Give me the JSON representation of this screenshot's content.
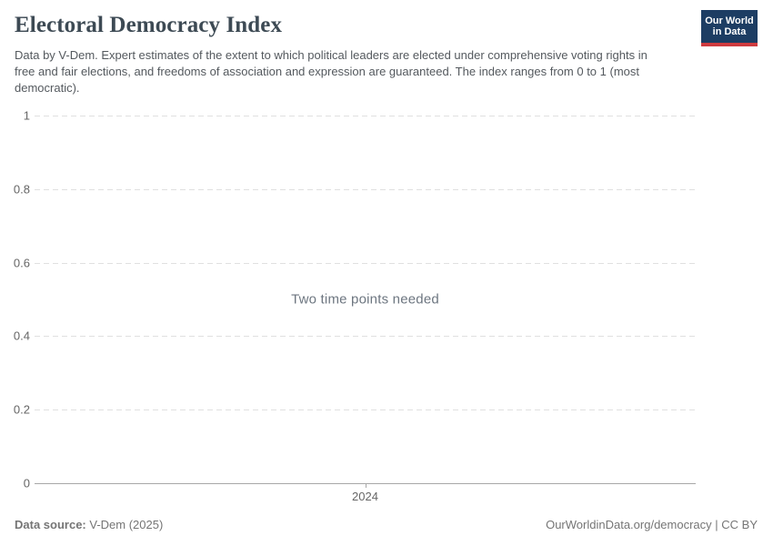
{
  "header": {
    "title": "Electoral Democracy Index",
    "subtitle": "Data by V-Dem. Expert estimates of the extent to which political leaders are elected under comprehensive voting rights in free and fair elections, and freedoms of association and expression are guaranteed. The index ranges from 0 to 1 (most democratic).",
    "logo": {
      "line1": "Our World",
      "line2": "in Data"
    }
  },
  "chart_data": {
    "type": "line",
    "title": "Electoral Democracy Index",
    "series": [],
    "message": "Two time points needed",
    "x_tick_labels": [
      "2024"
    ],
    "y_ticks": [
      0,
      0.2,
      0.4,
      0.6,
      0.8,
      1
    ],
    "y_tick_labels": [
      "0",
      "0.2",
      "0.4",
      "0.6",
      "0.8",
      "1"
    ],
    "ylim": [
      0,
      1
    ],
    "xlabel": "",
    "ylabel": "",
    "grid": true,
    "grid_style": "dashed",
    "legend": "none"
  },
  "footer": {
    "source_label": "Data source:",
    "source_value": "V-Dem (2025)",
    "credit_link": "OurWorldinData.org/democracy",
    "credit_suffix": "| CC BY"
  },
  "colors": {
    "logo_bg": "#1d3d63",
    "logo_stripe": "#cf3b3f",
    "title_text": "#3d4a54",
    "subtitle_text": "#54595e",
    "tick_text": "#666666",
    "grid_line": "#e0e0e0",
    "axis_line": "#a8a8a8",
    "message_text": "#6d7680",
    "footer_text": "#757575"
  }
}
